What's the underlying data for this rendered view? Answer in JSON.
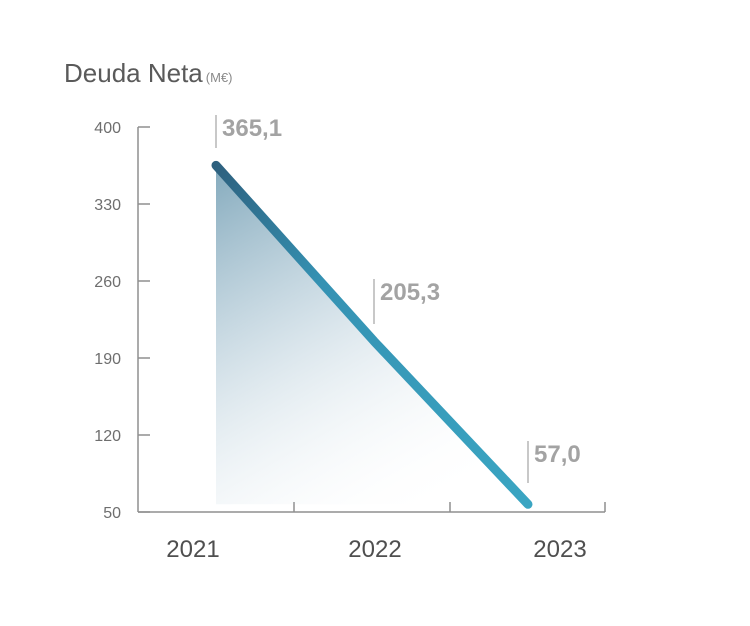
{
  "title": "Deuda Neta",
  "unit": "(M€)",
  "chart_data": {
    "type": "area",
    "title": "Deuda Neta (M€)",
    "categories": [
      "2021",
      "2022",
      "2023"
    ],
    "series": [
      {
        "values": [
          365.1,
          205.3,
          57.0
        ],
        "labels": [
          "365,1",
          "205,3",
          "57,0"
        ]
      }
    ],
    "yticks": [
      400,
      330,
      260,
      190,
      120,
      50
    ],
    "ylim": [
      50,
      400
    ],
    "grid": false,
    "colors": {
      "line_start": "#2d5f7d",
      "line_end": "#3aa5c2",
      "fill": "#2d6e8e"
    }
  }
}
